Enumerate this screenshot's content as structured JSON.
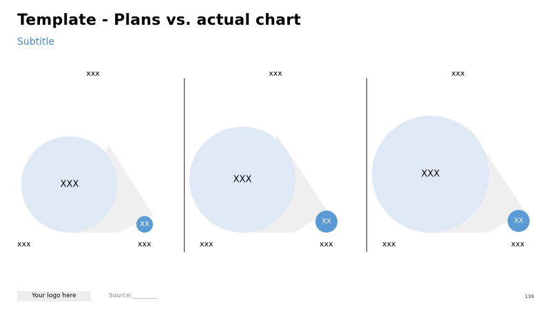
{
  "page": {
    "title": "Template - Plans vs. actual chart",
    "subtitle": "Subtitle",
    "logo_text": "Your logo here",
    "source_text": "Source:________",
    "page_number": "138"
  },
  "colors": {
    "big_circle": "#dfe9f5",
    "small_circle": "#5b9bd5",
    "funnel": "#efefef",
    "divider": "#1f2a5a",
    "subtitle": "#4a8cc9"
  },
  "panels": [
    {
      "top_label": "xxx",
      "big_label": "XXX",
      "small_label": "XX",
      "bottom_left_label": "xxx",
      "bottom_right_label": "xxx"
    },
    {
      "top_label": "xxx",
      "big_label": "XXX",
      "small_label": "XX",
      "bottom_left_label": "xxx",
      "bottom_right_label": "xxx"
    },
    {
      "top_label": "xxx",
      "big_label": "XXX",
      "small_label": "XX",
      "bottom_left_label": "xxx",
      "bottom_right_label": "xxx"
    }
  ]
}
